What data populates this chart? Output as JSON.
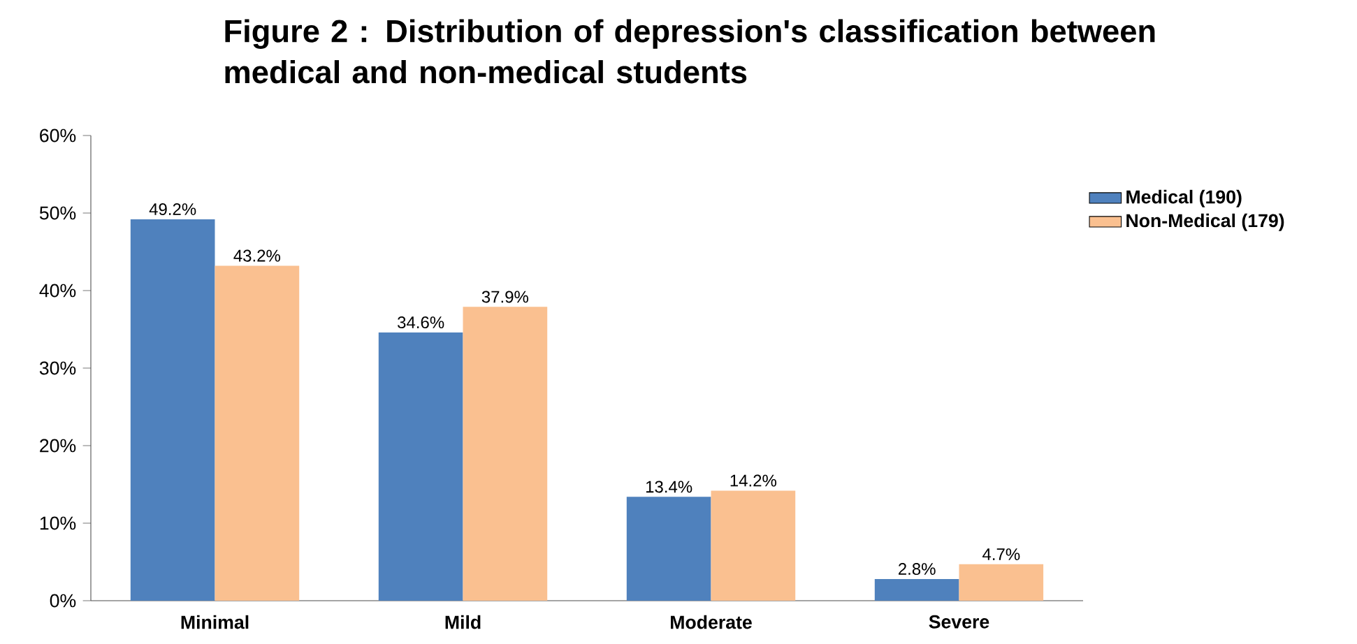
{
  "chart_data": {
    "type": "bar",
    "title": "Figure 2 : Distribution of depression's classification between medical and non-medical students",
    "categories": [
      "Minimal",
      "Mild",
      "Moderate",
      "Severe"
    ],
    "series": [
      {
        "name": "Medical (190)",
        "color": "#4f81bd",
        "values": [
          49.2,
          34.6,
          13.4,
          2.8
        ],
        "value_labels": [
          "49.2%",
          "34.6%",
          "13.4%",
          "2.8%"
        ]
      },
      {
        "name": "Non-Medical (179)",
        "color": "#fac090",
        "values": [
          43.2,
          37.9,
          14.2,
          4.7
        ],
        "value_labels": [
          "43.2%",
          "37.9%",
          "14.2%",
          "4.7%"
        ]
      }
    ],
    "ylim": [
      0,
      60
    ],
    "yticks": [
      {
        "value": 0,
        "label": "0%"
      },
      {
        "value": 10,
        "label": "10%"
      },
      {
        "value": 20,
        "label": "20%"
      },
      {
        "value": 30,
        "label": "30%"
      },
      {
        "value": 40,
        "label": "40%"
      },
      {
        "value": 50,
        "label": "50%"
      },
      {
        "value": 60,
        "label": "60%"
      }
    ],
    "grid": false,
    "legend": "top right"
  }
}
